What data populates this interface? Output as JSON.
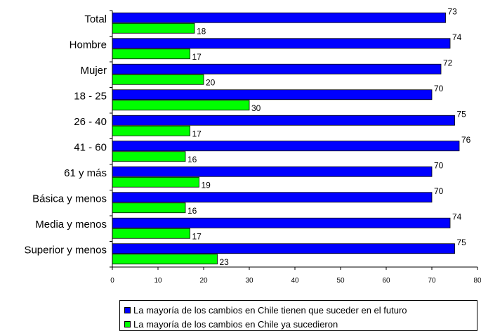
{
  "chart_data": {
    "type": "bar",
    "orientation": "horizontal",
    "categories": [
      "Total",
      "Hombre",
      "Mujer",
      "18 - 25",
      "26 - 40",
      "41 - 60",
      "61 y más",
      "Básica y menos",
      "Media y menos",
      "Superior y menos"
    ],
    "series": [
      {
        "name": "La mayoría de los cambios en Chile tienen que suceder en el futuro",
        "color": "#0000ff",
        "values": [
          73,
          74,
          72,
          70,
          75,
          76,
          70,
          70,
          74,
          75
        ],
        "labels": [
          "73",
          "74",
          "72",
          "70",
          "75",
          "76",
          "70",
          "70",
          "74",
          "75"
        ]
      },
      {
        "name": "La mayoría de los cambios en Chile ya sucedieron",
        "color": "#00ff00",
        "values": [
          18,
          17,
          20,
          30,
          17,
          16,
          19,
          16,
          17,
          23
        ],
        "labels": [
          "18",
          "17",
          "20",
          "30",
          "17",
          "16",
          "19",
          "16",
          "17",
          "23"
        ]
      }
    ],
    "xlim": [
      0,
      80
    ],
    "xticks": [
      "0",
      "10",
      "20",
      "30",
      "40",
      "50",
      "60",
      "70",
      "80"
    ],
    "grid": false,
    "legend_position": "bottom"
  }
}
